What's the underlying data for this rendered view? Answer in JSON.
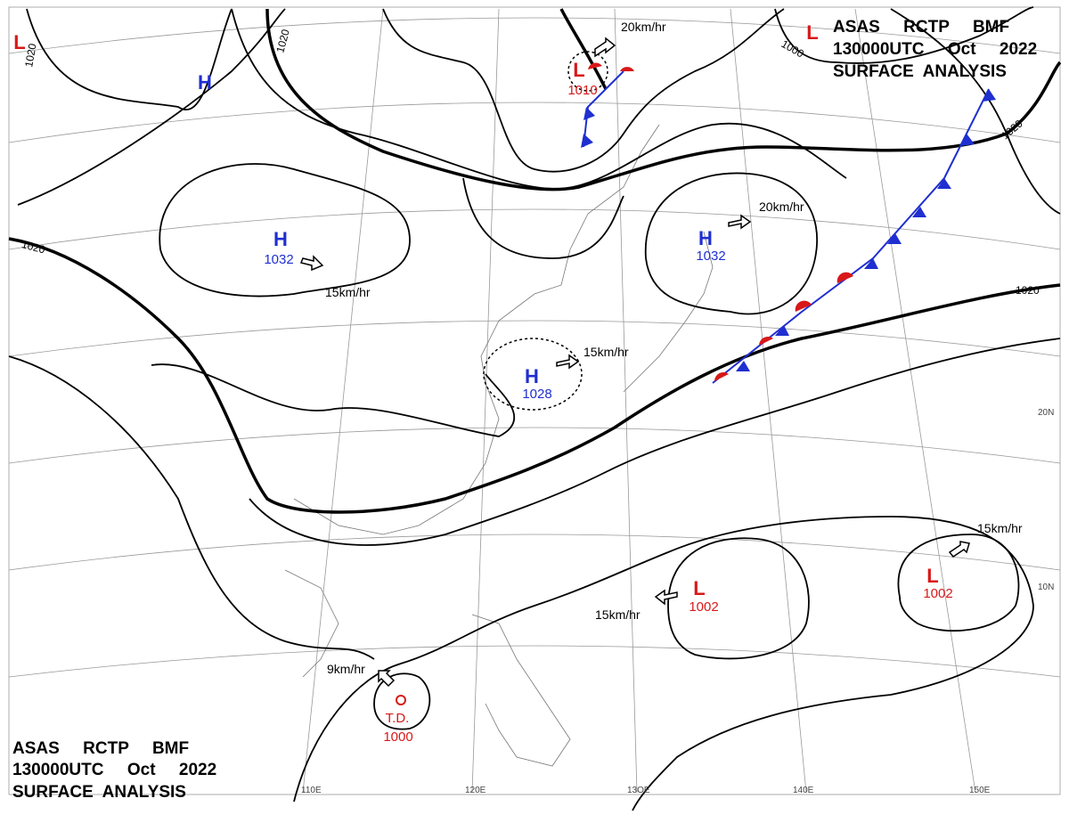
{
  "header": {
    "lines": [
      "ASAS     RCTP     BMF",
      "130000UTC     Oct     2022",
      "SURFACE  ANALYSIS"
    ]
  },
  "systems": [
    {
      "symbol": "H"
    },
    {
      "symbol": "H",
      "pressure": "1032"
    },
    {
      "symbol": "H",
      "pressure": "1032"
    },
    {
      "symbol": "H",
      "pressure": "1028"
    },
    {
      "symbol": "L",
      "pressure": "1010"
    },
    {
      "symbol": "L",
      "pressure": "1002"
    },
    {
      "symbol": "L",
      "pressure": "1002"
    },
    {
      "symbol": "T.D.",
      "pressure": "1000"
    },
    {
      "symbol": "L"
    },
    {
      "symbol": "L"
    }
  ],
  "motions": [
    "20km/hr",
    "20km/hr",
    "15km/hr",
    "15km/hr",
    "15km/hr",
    "15km/hr",
    "9km/hr"
  ],
  "isobar_labels": [
    "1020",
    "1020",
    "1020",
    "1000",
    "1020",
    "1020"
  ],
  "grid_labels": [
    "20N",
    "10N",
    "110E",
    "120E",
    "13OE",
    "140E",
    "150E"
  ]
}
